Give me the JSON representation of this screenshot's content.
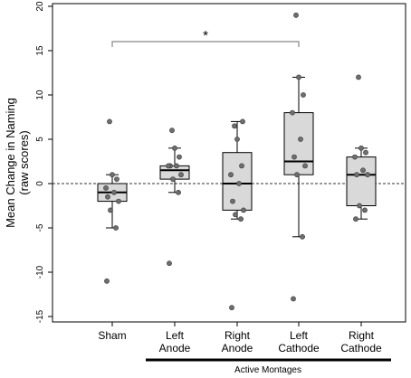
{
  "chart_data": {
    "type": "box",
    "ylabel": "Mean Change in Naming",
    "ylabel_sub": "(raw scores)",
    "ylim": [
      -15,
      20
    ],
    "yticks": [
      -15,
      -10,
      -5,
      0,
      5,
      10,
      15,
      20
    ],
    "reference_line": 0,
    "group_label": "Active Montages",
    "significance": {
      "from": "Sham",
      "to": "Left Cathode",
      "label": "*"
    },
    "categories": [
      {
        "label_lines": [
          "Sham"
        ],
        "box": {
          "whisker_low": -5,
          "q1": -2,
          "median": -1,
          "q3": 0,
          "whisker_high": 1
        },
        "points": [
          -11,
          -5,
          -3,
          -2,
          -1.5,
          -1,
          -0.5,
          0.5,
          1,
          7
        ]
      },
      {
        "label_lines": [
          "Left",
          "Anode"
        ],
        "box": {
          "whisker_low": -1,
          "q1": 0.5,
          "median": 1.5,
          "q3": 2,
          "whisker_high": 4
        },
        "points": [
          -9,
          -1,
          0.5,
          1,
          2,
          2,
          2,
          3,
          4,
          6
        ]
      },
      {
        "label_lines": [
          "Right",
          "Anode"
        ],
        "box": {
          "whisker_low": -4,
          "q1": -3,
          "median": 0,
          "q3": 3.5,
          "whisker_high": 7
        },
        "points": [
          -14,
          -4,
          -3.5,
          -3,
          -2,
          0,
          1,
          2,
          5,
          6.5,
          7
        ]
      },
      {
        "label_lines": [
          "Left",
          "Cathode"
        ],
        "box": {
          "whisker_low": -6,
          "q1": 1,
          "median": 2.5,
          "q3": 8,
          "whisker_high": 12
        },
        "points": [
          -13,
          -6,
          1,
          2,
          3,
          5,
          8,
          10,
          12,
          19
        ]
      },
      {
        "label_lines": [
          "Right",
          "Cathode"
        ],
        "box": {
          "whisker_low": -4,
          "q1": -2.5,
          "median": 1,
          "q3": 3,
          "whisker_high": 4
        },
        "points": [
          -4,
          -3,
          -2.5,
          1,
          1,
          1.5,
          3,
          3.5,
          4,
          12
        ]
      }
    ]
  }
}
